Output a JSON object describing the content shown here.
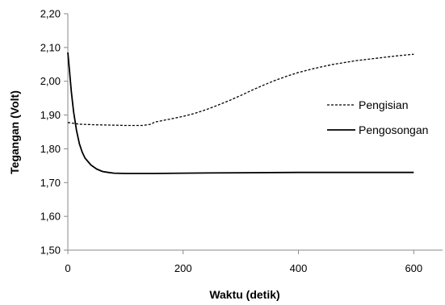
{
  "chart_data": {
    "type": "line",
    "title": "",
    "xlabel": "Waktu (detik)",
    "ylabel": "Tegangan (Volt)",
    "xlim": [
      0,
      650
    ],
    "ylim": [
      1.5,
      2.2
    ],
    "x_ticks": [
      0,
      200,
      400,
      600
    ],
    "y_ticks": [
      1.5,
      1.6,
      1.7,
      1.8,
      1.9,
      2.0,
      2.1,
      2.2
    ],
    "y_tick_labels": [
      "1,50",
      "1,60",
      "1,70",
      "1,80",
      "1,90",
      "2,00",
      "2,10",
      "2,20"
    ],
    "grid": false,
    "legend_position": "right",
    "series": [
      {
        "name": "Pengisian",
        "line_style": "dashed",
        "color": "#000000",
        "points": [
          [
            0,
            1.878
          ],
          [
            20,
            1.873
          ],
          [
            50,
            1.871
          ],
          [
            80,
            1.87
          ],
          [
            100,
            1.869
          ],
          [
            130,
            1.869
          ],
          [
            145,
            1.873
          ],
          [
            150,
            1.879
          ],
          [
            165,
            1.884
          ],
          [
            180,
            1.889
          ],
          [
            200,
            1.896
          ],
          [
            220,
            1.905
          ],
          [
            240,
            1.916
          ],
          [
            260,
            1.929
          ],
          [
            280,
            1.943
          ],
          [
            300,
            1.958
          ],
          [
            320,
            1.974
          ],
          [
            340,
            1.989
          ],
          [
            360,
            2.003
          ],
          [
            380,
            2.015
          ],
          [
            400,
            2.026
          ],
          [
            430,
            2.039
          ],
          [
            460,
            2.05
          ],
          [
            500,
            2.061
          ],
          [
            540,
            2.069
          ],
          [
            570,
            2.075
          ],
          [
            600,
            2.08
          ]
        ]
      },
      {
        "name": "Pengosongan",
        "line_style": "solid",
        "color": "#000000",
        "points": [
          [
            0,
            2.085
          ],
          [
            3,
            2.03
          ],
          [
            6,
            1.97
          ],
          [
            10,
            1.91
          ],
          [
            15,
            1.855
          ],
          [
            20,
            1.815
          ],
          [
            25,
            1.79
          ],
          [
            30,
            1.772
          ],
          [
            40,
            1.752
          ],
          [
            50,
            1.74
          ],
          [
            60,
            1.733
          ],
          [
            70,
            1.73
          ],
          [
            80,
            1.728
          ],
          [
            100,
            1.727
          ],
          [
            150,
            1.727
          ],
          [
            200,
            1.728
          ],
          [
            300,
            1.729
          ],
          [
            400,
            1.73
          ],
          [
            500,
            1.73
          ],
          [
            600,
            1.73
          ]
        ]
      }
    ]
  }
}
